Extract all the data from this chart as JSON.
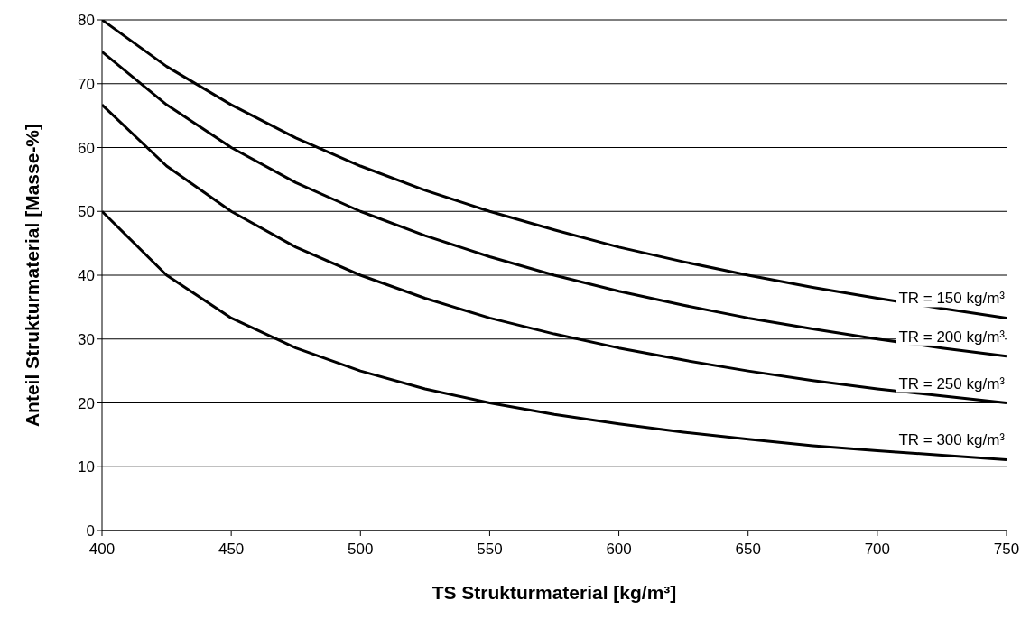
{
  "chart_data": {
    "type": "line",
    "xlabel": "TS Strukturmaterial [kg/m³]",
    "ylabel": "Anteil Strukturmaterial [Masse-%]",
    "x": [
      400,
      425,
      450,
      475,
      500,
      525,
      550,
      575,
      600,
      625,
      650,
      675,
      700,
      725,
      750
    ],
    "series": [
      {
        "name": "TR = 150 kg/m³",
        "color": "#000000",
        "values": [
          80,
          72.7,
          66.7,
          61.5,
          57.1,
          53.3,
          50,
          47.1,
          44.4,
          42.1,
          40,
          38.1,
          36.4,
          34.8,
          33.3
        ]
      },
      {
        "name": "TR = 200 kg/m³",
        "color": "#000000",
        "values": [
          75,
          66.7,
          60,
          54.5,
          50,
          46.2,
          42.9,
          40,
          37.5,
          35.3,
          33.3,
          31.6,
          30,
          28.6,
          27.3
        ]
      },
      {
        "name": "TR = 250 kg/m³",
        "color": "#000000",
        "values": [
          66.7,
          57.1,
          50,
          44.4,
          40,
          36.4,
          33.3,
          30.8,
          28.6,
          26.7,
          25,
          23.5,
          22.2,
          21.1,
          20
        ]
      },
      {
        "name": "TR = 300 kg/m³",
        "color": "#000000",
        "values": [
          50,
          40,
          33.3,
          28.6,
          25,
          22.2,
          20,
          18.2,
          16.7,
          15.4,
          14.3,
          13.3,
          12.5,
          11.8,
          11.1
        ]
      }
    ],
    "xlim": [
      400,
      750
    ],
    "xticks": [
      400,
      450,
      500,
      550,
      600,
      650,
      700,
      750
    ],
    "ylim": [
      0,
      80
    ],
    "yticks": [
      0,
      10,
      20,
      30,
      40,
      50,
      60,
      70,
      80
    ],
    "grid": "y",
    "marker": "none",
    "line_style": "solid"
  }
}
